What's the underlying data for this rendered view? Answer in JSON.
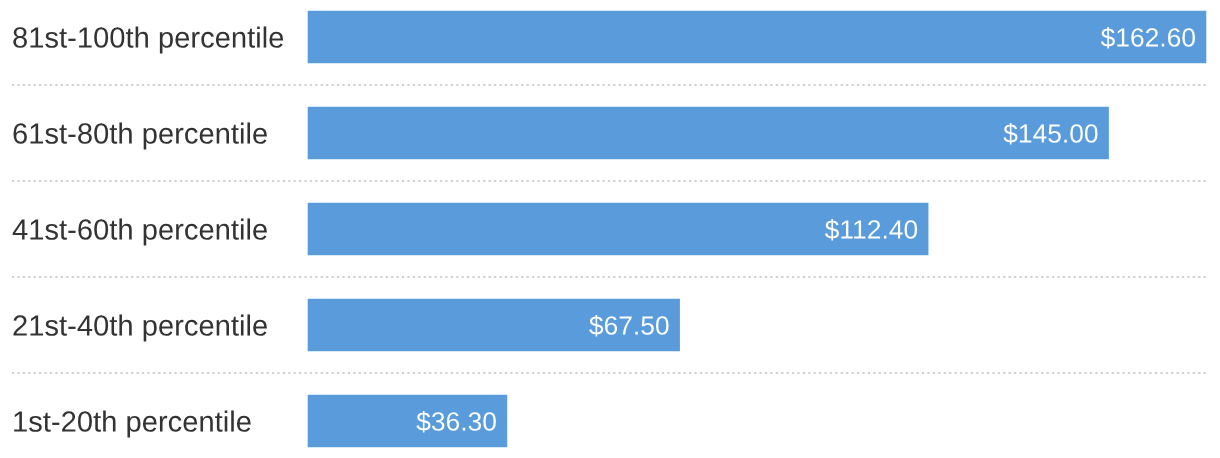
{
  "chart_data": {
    "type": "bar",
    "orientation": "horizontal",
    "categories": [
      "81st-100th percentile",
      "61st-80th percentile",
      "41st-60th percentile",
      "21st-40th percentile",
      "1st-20th percentile"
    ],
    "values": [
      162.6,
      145.0,
      112.4,
      67.5,
      36.3
    ],
    "value_labels": [
      "$162.60",
      "$145.00",
      "$112.40",
      "$67.50",
      "$36.30"
    ],
    "color": "#5a9cdb",
    "grid": "y"
  }
}
